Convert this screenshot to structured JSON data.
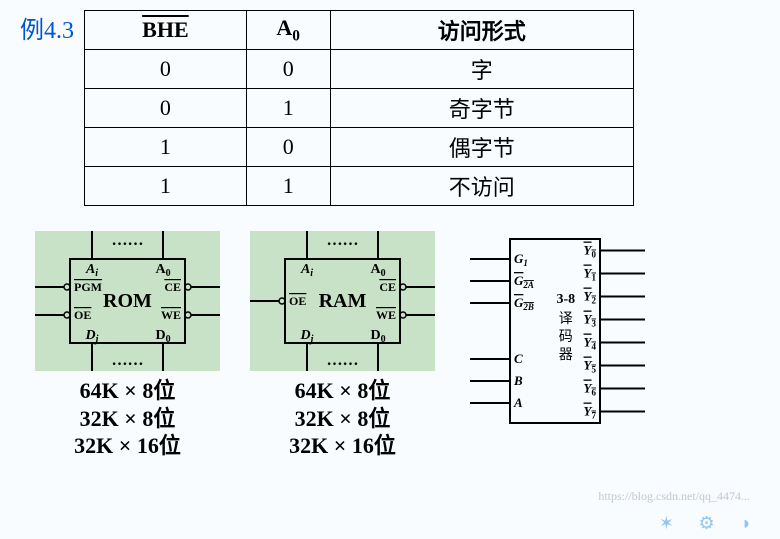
{
  "example_label": "例4.3",
  "table": {
    "headers": [
      "BHE",
      "A0",
      "访问形式"
    ],
    "header_sub": [
      true,
      true,
      false
    ],
    "header_overline": [
      true,
      false,
      false
    ],
    "rows": [
      [
        "0",
        "0",
        "字"
      ],
      [
        "0",
        "1",
        "奇字节"
      ],
      [
        "1",
        "0",
        "偶字节"
      ],
      [
        "1",
        "1",
        "不访问"
      ]
    ]
  },
  "chips": [
    {
      "bg": "#c8e2c8",
      "name": "ROM",
      "top_dots": "……",
      "bottom_dots": "……",
      "left_pins_top": [
        "Ai"
      ],
      "right_pins_top": [
        "A0"
      ],
      "left_mid": [
        "PGM",
        "OE"
      ],
      "right_mid": [
        "CE",
        "WE"
      ],
      "left_bot": [
        "Dj"
      ],
      "right_bot": [
        "D0"
      ],
      "overline_left_mid": [
        true,
        true
      ],
      "overline_right_mid": [
        true,
        true
      ],
      "sub_left_top": [
        true
      ],
      "sub_right_top": [
        true
      ],
      "sub_left_bot": [
        true
      ],
      "sub_right_bot": [
        true
      ],
      "sizes": [
        "64K × 8位",
        "32K × 8位",
        "32K × 16位"
      ]
    },
    {
      "bg": "#c8e2c8",
      "name": "RAM",
      "top_dots": "……",
      "bottom_dots": "……",
      "left_pins_top": [
        "Ai"
      ],
      "right_pins_top": [
        "A0"
      ],
      "left_mid": [
        "OE"
      ],
      "right_mid": [
        "CE",
        "WE"
      ],
      "left_bot": [
        "Dj"
      ],
      "right_bot": [
        "D0"
      ],
      "overline_left_mid": [
        true
      ],
      "overline_right_mid": [
        true,
        true
      ],
      "sub_left_top": [
        true
      ],
      "sub_right_top": [
        true
      ],
      "sub_left_bot": [
        true
      ],
      "sub_right_bot": [
        true
      ],
      "sizes": [
        "64K × 8位",
        "32K × 8位",
        "32K × 16位"
      ]
    }
  ],
  "decoder": {
    "left_pins": [
      {
        "label": "G",
        "sub": "1",
        "overline": false
      },
      {
        "label": "G",
        "sub": "2A",
        "overline": true
      },
      {
        "label": "G",
        "sub": "2B",
        "overline": true
      },
      {
        "label": "C",
        "sub": "",
        "overline": false
      },
      {
        "label": "B",
        "sub": "",
        "overline": false
      },
      {
        "label": "A",
        "sub": "",
        "overline": false
      }
    ],
    "right_pins": [
      {
        "label": "Y",
        "sub": "0",
        "overline": true
      },
      {
        "label": "Y",
        "sub": "1",
        "overline": true
      },
      {
        "label": "Y",
        "sub": "2",
        "overline": true
      },
      {
        "label": "Y",
        "sub": "3",
        "overline": true
      },
      {
        "label": "Y",
        "sub": "4",
        "overline": true
      },
      {
        "label": "Y",
        "sub": "5",
        "overline": true
      },
      {
        "label": "Y",
        "sub": "6",
        "overline": true
      },
      {
        "label": "Y",
        "sub": "7",
        "overline": true
      }
    ],
    "center_lines": [
      "3-8",
      "译",
      "码",
      "器"
    ]
  },
  "colors": {
    "bg": "#f8fcff",
    "chip_bg": "#c8e2c8",
    "stroke": "#000000",
    "label_blue": "#0055cc"
  },
  "watermark": "https://blog.csdn.net/qq_4474...",
  "decor": "✶ ⚙ ◑"
}
